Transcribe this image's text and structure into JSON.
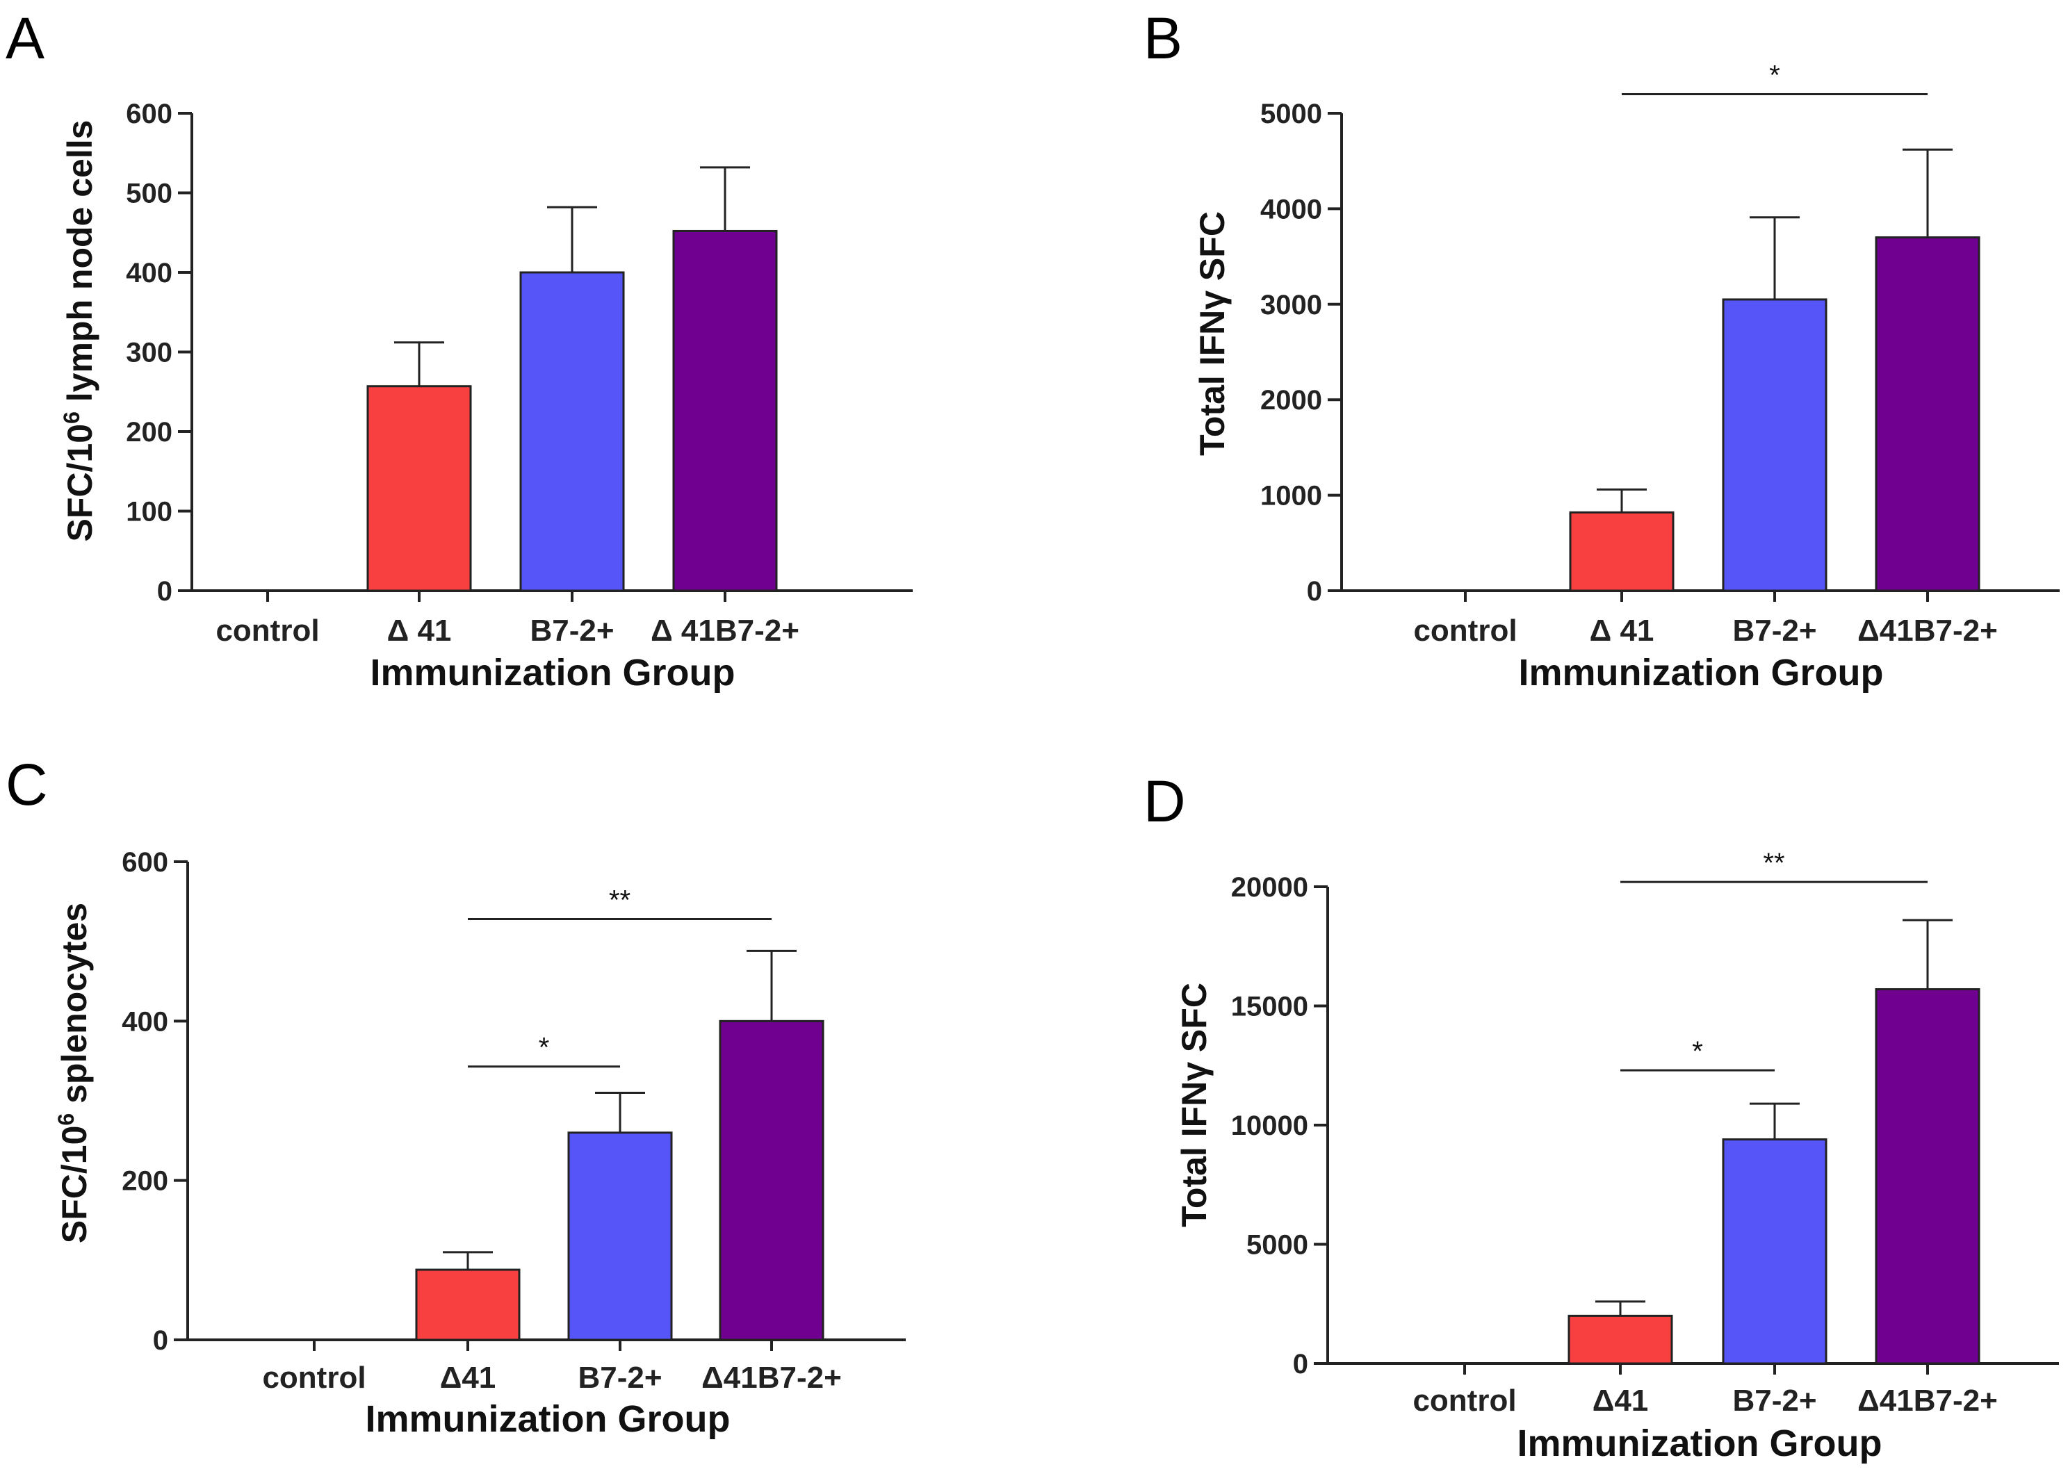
{
  "figure": {
    "colors": {
      "control": "#ffffff",
      "delta41": "#f94040",
      "b72": "#5555f8",
      "delta41b72": "#700090"
    }
  },
  "chart_data": [
    {
      "type": "bar",
      "panel": "A",
      "title": "",
      "xlabel": "Immunization Group",
      "ylabel": "SFC/10⁶ lymph node cells",
      "ylabel_parts": [
        "SFC/10",
        "6",
        " lymph node cells"
      ],
      "categories": [
        "control",
        "Δ 41",
        "B7-2+",
        "Δ 41B7-2+"
      ],
      "values": [
        0,
        257,
        400,
        452
      ],
      "errors": [
        0,
        55,
        82,
        80
      ],
      "ylim": [
        0,
        600
      ],
      "yticks": [
        0,
        100,
        200,
        300,
        400,
        500,
        600
      ],
      "ytick_labels": [
        "0",
        "100",
        "200",
        "300",
        "400",
        "500",
        "600"
      ],
      "colors": [
        "#ffffff",
        "#f94040",
        "#5555f8",
        "#700090"
      ],
      "significance": []
    },
    {
      "type": "bar",
      "panel": "B",
      "title": "",
      "xlabel": "Immunization Group",
      "ylabel": "Total IFNγ SFC",
      "ylabel_parts": [
        "Total IFNγ SFC"
      ],
      "categories": [
        "control",
        "Δ 41",
        "B7-2+",
        "Δ41B7-2+"
      ],
      "values": [
        0,
        820,
        3050,
        3700
      ],
      "errors": [
        0,
        240,
        860,
        920
      ],
      "ylim": [
        0,
        5000
      ],
      "yticks": [
        0,
        1000,
        2000,
        3000,
        4000,
        5000
      ],
      "ytick_labels": [
        "0",
        "1000",
        "2000",
        "3000",
        "4000",
        "5000"
      ],
      "colors": [
        "#ffffff",
        "#f94040",
        "#5555f8",
        "#700090"
      ],
      "significance": [
        {
          "from": 1,
          "to": 3,
          "label": "*",
          "y": 5200
        }
      ]
    },
    {
      "type": "bar",
      "panel": "C",
      "title": "",
      "xlabel": "Immunization Group",
      "ylabel": "SFC/10⁶ splenocytes",
      "ylabel_parts": [
        "SFC/10",
        "6",
        " splenocytes"
      ],
      "categories": [
        "control",
        "Δ41",
        "B7-2+",
        "Δ41B7-2+"
      ],
      "values": [
        0,
        88,
        260,
        400
      ],
      "errors": [
        0,
        22,
        50,
        88
      ],
      "ylim": [
        0,
        600
      ],
      "yticks": [
        0,
        200,
        400,
        600
      ],
      "ytick_labels": [
        "0",
        "200",
        "400",
        "600"
      ],
      "colors": [
        "#ffffff",
        "#f94040",
        "#5555f8",
        "#700090"
      ],
      "significance": [
        {
          "from": 1,
          "to": 3,
          "label": "**",
          "y": 528
        },
        {
          "from": 1,
          "to": 2,
          "label": "*",
          "y": 343
        }
      ]
    },
    {
      "type": "bar",
      "panel": "D",
      "title": "",
      "xlabel": "Immunization Group",
      "ylabel": "Total IFNγ SFC",
      "ylabel_parts": [
        "Total IFNγ SFC"
      ],
      "categories": [
        "control",
        "Δ41",
        "B7-2+",
        "Δ41B7-2+"
      ],
      "values": [
        0,
        2000,
        9400,
        15700
      ],
      "errors": [
        0,
        600,
        1500,
        2900
      ],
      "ylim": [
        0,
        20000
      ],
      "yticks": [
        0,
        5000,
        10000,
        15000,
        20000
      ],
      "ytick_labels": [
        "0",
        "5000",
        "10000",
        "15000",
        "20000"
      ],
      "colors": [
        "#ffffff",
        "#f94040",
        "#5555f8",
        "#700090"
      ],
      "significance": [
        {
          "from": 1,
          "to": 3,
          "label": "**",
          "y": 20200
        },
        {
          "from": 1,
          "to": 2,
          "label": "*",
          "y": 12300
        }
      ]
    }
  ]
}
